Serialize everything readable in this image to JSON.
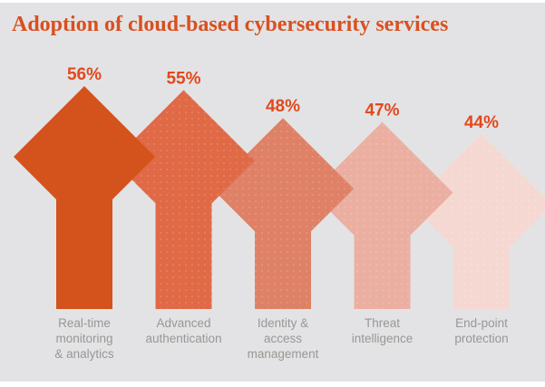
{
  "title": "Adoption of cloud-based cybersecurity services",
  "colors": {
    "background": "#E3E3E5",
    "title": "#D9501F",
    "value_label": "#E2491C",
    "category_label": "#9A9694"
  },
  "chart_data": {
    "type": "bar",
    "variant": "upward-arrow-pictogram",
    "title": "Adoption of cloud-based cybersecurity services",
    "unit": "%",
    "categories": [
      "Real-time monitoring & analytics",
      "Advanced authentication",
      "Identity & access management",
      "Threat intelligence",
      "End-point protection"
    ],
    "category_lines": [
      [
        "Real-time",
        "monitoring",
        "& analytics"
      ],
      [
        "Advanced",
        "authentication"
      ],
      [
        "Identity &",
        "access",
        "management"
      ],
      [
        "Threat",
        "intelligence"
      ],
      [
        "End-point",
        "protection"
      ]
    ],
    "values": [
      56,
      55,
      48,
      47,
      44
    ],
    "value_labels": [
      "56%",
      "55%",
      "48%",
      "47%",
      "44%"
    ],
    "bar_colors": [
      "#D4531D",
      "#E06946",
      "#DF8166",
      "#EBAFA2",
      "#F6D8D2"
    ],
    "dotted_texture": [
      false,
      true,
      true,
      true,
      true
    ],
    "value_range": [
      44,
      56
    ],
    "legend": "none",
    "axes": "none",
    "grid": false
  }
}
